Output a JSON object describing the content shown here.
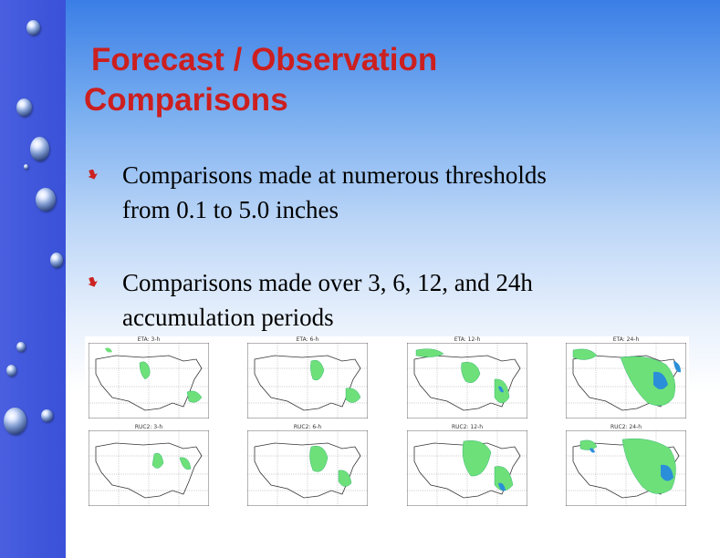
{
  "title": {
    "line1": "Forecast / Observation",
    "line2": "Comparisons"
  },
  "colors": {
    "title": "#cc1f1f",
    "bullet_arrow": "#cc2222",
    "sidebar": "#3f56db",
    "precip_light": "#6ee07a",
    "precip_heavy": "#2a8fd8"
  },
  "bullets": [
    {
      "icon": "red-arrow-bullet-icon",
      "text_line1": "Comparisons made at numerous thresholds",
      "text_line2": "from 0.1 to 5.0 inches"
    },
    {
      "icon": "red-arrow-bullet-icon",
      "text_line1": "Comparisons made over 3, 6, 12, and 24h",
      "text_line2": "accumulation periods"
    }
  ],
  "maps": {
    "row1": [
      {
        "caption": "ETA: 3-h"
      },
      {
        "caption": "ETA: 6-h"
      },
      {
        "caption": "ETA: 12-h"
      },
      {
        "caption": "ETA: 24-h"
      }
    ],
    "row2": [
      {
        "caption": "RUC2: 3-h"
      },
      {
        "caption": "RUC2: 6-h"
      },
      {
        "caption": "RUC2: 12-h"
      },
      {
        "caption": "RUC2: 24-h"
      }
    ]
  }
}
